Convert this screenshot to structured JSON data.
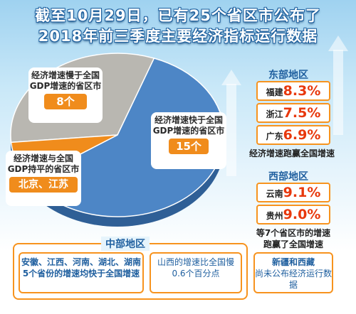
{
  "title": {
    "line1": "截至10月29日，已有25个省区市公布了",
    "line2": "2018年前三季度主要经济指标运行数据"
  },
  "chart_data": {
    "type": "pie",
    "labels": [
      "经济增速慢于全国GDP增速的省区市",
      "经济增速快于全国GDP增速的省区市",
      "经济增速与全国GDP持平的省区市"
    ],
    "values": [
      8,
      15,
      2
    ],
    "value_labels": [
      "8个",
      "15个",
      "北京、江苏"
    ],
    "colors": [
      "#b9b7b1",
      "#4d86c6",
      "#f08c1c"
    ]
  },
  "east": {
    "title": "东部地区",
    "items": [
      {
        "name": "福建",
        "value": "8.3%"
      },
      {
        "name": "浙江",
        "value": "7.5%"
      },
      {
        "name": "广东",
        "value": "6.9%"
      }
    ],
    "note": "经济增速跑赢全国增速"
  },
  "west": {
    "title": "西部地区",
    "items": [
      {
        "name": "云南",
        "value": "9.1%"
      },
      {
        "name": "贵州",
        "value": "9.0%"
      }
    ],
    "note": "等7个省区市的增速跑赢了全国增速",
    "pending_head": "新疆和西藏",
    "pending_body": "尚未公布经济运行数据"
  },
  "central": {
    "title": "中部地区",
    "left_text": "安徽、江西、河南、湖北、湖南5个省份的增速均快于全国增速",
    "right_text": "山西的增速比全国慢0.6个百分点"
  }
}
